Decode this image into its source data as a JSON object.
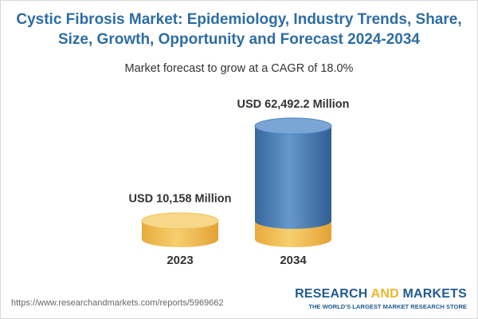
{
  "chart_data": {
    "type": "bar",
    "title": "Cystic Fibrosis Market: Epidemiology, Industry Trends, Share, Size, Growth, Opportunity and Forecast 2024-2034",
    "subtitle": "Market forecast to grow at a CAGR of 18.0%",
    "categories": [
      "2023",
      "2034"
    ],
    "values": [
      10158,
      62492.2
    ],
    "value_labels": [
      "USD 10,158 Million",
      "USD 62,492.2 Million"
    ],
    "colors": [
      "#f0c35a",
      "#4f86bf"
    ]
  },
  "footer": {
    "url": "https://www.researchandmarkets.com/reports/5969662",
    "brand": [
      "RESEARCH",
      "AND",
      "MARKETS"
    ],
    "tagline": "THE WORLD'S LARGEST MARKET RESEARCH STORE"
  }
}
